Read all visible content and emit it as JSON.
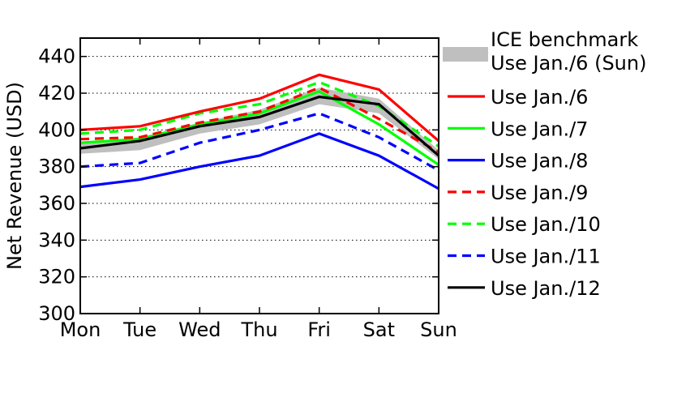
{
  "chart_data": {
    "type": "line",
    "title": "",
    "xlabel": "",
    "ylabel": "Net Revenue (USD)",
    "categories": [
      "Mon",
      "Tue",
      "Wed",
      "Thu",
      "Fri",
      "Sat",
      "Sun"
    ],
    "ylim": [
      300,
      450
    ],
    "yticks": [
      300,
      320,
      340,
      360,
      380,
      400,
      420,
      440
    ],
    "grid": "horizontal-dotted",
    "legend_position": "right",
    "band": {
      "name": "ICE benchmark\nUse Jan./6 (Sun)",
      "color": "#bfbfbf",
      "lower": [
        387,
        389,
        398,
        403,
        414,
        409,
        384
      ],
      "upper": [
        393,
        396,
        404,
        411,
        423,
        417,
        389
      ]
    },
    "series": [
      {
        "name": "Use Jan./6",
        "color": "#ff0000",
        "dash": "solid",
        "values": [
          400,
          402,
          410,
          417,
          430,
          422,
          394
        ]
      },
      {
        "name": "Use Jan./7",
        "color": "#00ff00",
        "dash": "solid",
        "values": [
          393,
          395,
          403,
          409,
          421,
          403,
          381
        ]
      },
      {
        "name": "Use Jan./8",
        "color": "#0000ff",
        "dash": "solid",
        "values": [
          369,
          373,
          380,
          386,
          398,
          386,
          368
        ]
      },
      {
        "name": "Use Jan./9",
        "color": "#ff0000",
        "dash": "dashed",
        "values": [
          395,
          396,
          404,
          410,
          423,
          406,
          388
        ]
      },
      {
        "name": "Use Jan./10",
        "color": "#00ff00",
        "dash": "dashed",
        "values": [
          398,
          400,
          409,
          414,
          426,
          413,
          391
        ]
      },
      {
        "name": "Use Jan./11",
        "color": "#0000ff",
        "dash": "dashed",
        "values": [
          380,
          382,
          393,
          400,
          409,
          396,
          378
        ]
      },
      {
        "name": "Use Jan./12",
        "color": "#000000",
        "dash": "solid",
        "values": [
          390,
          394,
          402,
          407,
          418,
          414,
          386
        ]
      }
    ]
  }
}
